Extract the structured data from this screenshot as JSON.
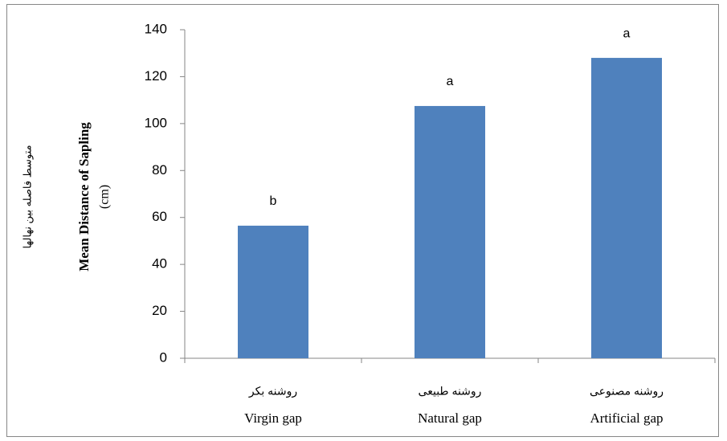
{
  "chart_data": {
    "type": "bar",
    "y_label": [
      "متوسط فاصله بین نهالها",
      "Mean Distance of Sapling",
      "(cm)"
    ],
    "categories": [
      "Virgin gap",
      "Natural gap",
      "Artificial gap"
    ],
    "category_labels_fa": [
      "روشنه بکر",
      "روشنه طبیعی",
      "روشنه مصنوعی"
    ],
    "values": [
      56.5,
      107.5,
      128
    ],
    "letters": [
      "b",
      "a",
      "a"
    ],
    "color": "#4f81bd",
    "ylim": [
      0,
      140
    ],
    "yticks": [
      0,
      20,
      40,
      60,
      80,
      100,
      120,
      140
    ],
    "grid": false
  }
}
